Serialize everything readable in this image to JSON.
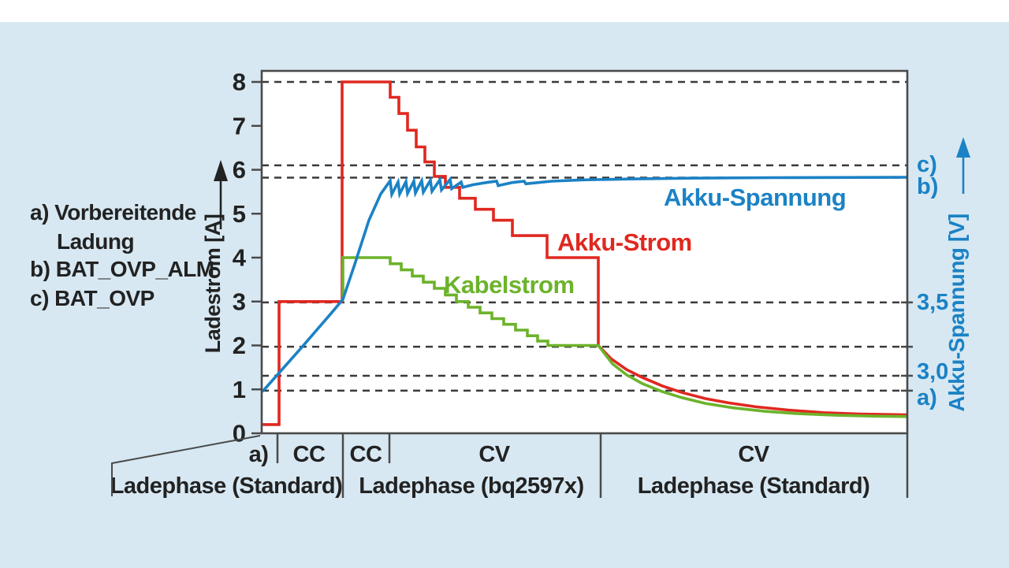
{
  "colors": {
    "panel_bg": "#d7e8f2",
    "top_strip": "#ffffff",
    "plot_bg": "#ffffff",
    "frame": "#4a4a4a",
    "dash": "#3a3a3a",
    "text": "#222222",
    "red": "#e02820",
    "green": "#6cb32b",
    "blue": "#1b82c5"
  },
  "legend": {
    "lines": [
      {
        "text": "a) Vorbereitende"
      },
      {
        "text": "Ladung"
      },
      {
        "text": "b) BAT_OVP_ALM"
      },
      {
        "text": "c) BAT_OVP"
      }
    ]
  },
  "chart_data": {
    "type": "line",
    "title": "",
    "grid": "horizontal-dashed",
    "left_axis": {
      "label": "Ladestrom [A]",
      "unit": "A",
      "range": [
        0,
        8
      ],
      "ticks": [
        0,
        1,
        2,
        3,
        4,
        5,
        6,
        7,
        8
      ]
    },
    "right_axis": {
      "label": "Akku-Spannung [V]",
      "unit": "V",
      "labels": [
        {
          "text": "c)",
          "value": 6.12
        },
        {
          "text": "b)",
          "value": 5.61
        },
        {
          "text": "3,5",
          "value": 2.98
        },
        {
          "text": "3,0",
          "value": 1.4
        },
        {
          "text": "a)",
          "value": 0.81
        }
      ],
      "tick_values": [
        2.98,
        1.97,
        1.31,
        0.97
      ]
    },
    "dashed_levels": [
      8,
      6.1,
      5.82,
      2.98,
      1.97,
      1.31,
      0.97
    ],
    "series": [
      {
        "name": "Akku-Strom",
        "color": "#e02820",
        "points": [
          [
            332,
            0.2
          ],
          [
            354,
            0.2
          ],
          [
            354,
            3
          ],
          [
            434,
            3
          ],
          [
            434,
            8
          ],
          [
            495,
            8
          ],
          [
            495,
            7.65
          ],
          [
            506,
            7.65
          ],
          [
            506,
            7.28
          ],
          [
            517,
            7.28
          ],
          [
            517,
            6.9
          ],
          [
            528,
            6.9
          ],
          [
            528,
            6.52
          ],
          [
            539,
            6.52
          ],
          [
            539,
            6.18
          ],
          [
            551,
            6.18
          ],
          [
            551,
            5.85
          ],
          [
            565,
            5.85
          ],
          [
            565,
            5.6
          ],
          [
            583,
            5.6
          ],
          [
            583,
            5.35
          ],
          [
            603,
            5.35
          ],
          [
            603,
            5.1
          ],
          [
            626,
            5.1
          ],
          [
            626,
            4.85
          ],
          [
            650,
            4.85
          ],
          [
            650,
            4.5
          ],
          [
            694,
            4.5
          ],
          [
            694,
            4
          ],
          [
            759,
            4
          ],
          [
            759,
            2
          ],
          [
            775,
            1.7
          ],
          [
            795,
            1.45
          ],
          [
            815,
            1.27
          ],
          [
            840,
            1.08
          ],
          [
            865,
            0.93
          ],
          [
            895,
            0.79
          ],
          [
            925,
            0.69
          ],
          [
            960,
            0.6
          ],
          [
            1000,
            0.53
          ],
          [
            1045,
            0.47
          ],
          [
            1090,
            0.44
          ],
          [
            1151,
            0.42
          ]
        ]
      },
      {
        "name": "Kabelstrom",
        "color": "#6cb32b",
        "points": [
          [
            435,
            3.02
          ],
          [
            435,
            4
          ],
          [
            495,
            4
          ],
          [
            495,
            3.86
          ],
          [
            509,
            3.86
          ],
          [
            509,
            3.72
          ],
          [
            523,
            3.72
          ],
          [
            523,
            3.58
          ],
          [
            537,
            3.58
          ],
          [
            537,
            3.44
          ],
          [
            551,
            3.44
          ],
          [
            551,
            3.3
          ],
          [
            565,
            3.3
          ],
          [
            565,
            3.15
          ],
          [
            579,
            3.15
          ],
          [
            579,
            3
          ],
          [
            594,
            3
          ],
          [
            594,
            2.87
          ],
          [
            609,
            2.87
          ],
          [
            609,
            2.74
          ],
          [
            624,
            2.74
          ],
          [
            624,
            2.61
          ],
          [
            639,
            2.61
          ],
          [
            639,
            2.48
          ],
          [
            654,
            2.48
          ],
          [
            654,
            2.35
          ],
          [
            669,
            2.35
          ],
          [
            669,
            2.22
          ],
          [
            682,
            2.22
          ],
          [
            682,
            2.1
          ],
          [
            695,
            2.1
          ],
          [
            695,
            2
          ],
          [
            759,
            2
          ],
          [
            777,
            1.58
          ],
          [
            795,
            1.33
          ],
          [
            815,
            1.13
          ],
          [
            840,
            0.95
          ],
          [
            865,
            0.81
          ],
          [
            895,
            0.68
          ],
          [
            930,
            0.58
          ],
          [
            970,
            0.5
          ],
          [
            1010,
            0.45
          ],
          [
            1060,
            0.41
          ],
          [
            1110,
            0.39
          ],
          [
            1151,
            0.38
          ]
        ]
      },
      {
        "name": "Akku-Spannung",
        "color": "#1b82c5",
        "points": [
          [
            333,
            0.95
          ],
          [
            380,
            1.9
          ],
          [
            420,
            2.73
          ],
          [
            435,
            3.05
          ],
          [
            450,
            3.85
          ],
          [
            468,
            4.85
          ],
          [
            483,
            5.45
          ],
          [
            495,
            5.75
          ],
          [
            497,
            5.44
          ],
          [
            505,
            5.72
          ],
          [
            507,
            5.45
          ],
          [
            515,
            5.73
          ],
          [
            517,
            5.46
          ],
          [
            525,
            5.74
          ],
          [
            527,
            5.47
          ],
          [
            535,
            5.75
          ],
          [
            537,
            5.49
          ],
          [
            546,
            5.76
          ],
          [
            548,
            5.51
          ],
          [
            558,
            5.77
          ],
          [
            560,
            5.54
          ],
          [
            571,
            5.78
          ],
          [
            573,
            5.57
          ],
          [
            585,
            5.72
          ],
          [
            587,
            5.6
          ],
          [
            600,
            5.66
          ],
          [
            617,
            5.71
          ],
          [
            630,
            5.74
          ],
          [
            632,
            5.64
          ],
          [
            650,
            5.71
          ],
          [
            665,
            5.74
          ],
          [
            667,
            5.68
          ],
          [
            700,
            5.74
          ],
          [
            740,
            5.77
          ],
          [
            800,
            5.79
          ],
          [
            880,
            5.81
          ],
          [
            980,
            5.82
          ],
          [
            1151,
            5.83
          ]
        ]
      }
    ],
    "curve_labels": [
      {
        "text": "Akku-Strom",
        "x": 707,
        "y": 318,
        "color": "#e02820"
      },
      {
        "text": "Kabelstrom",
        "x": 563,
        "y": 372,
        "color": "#6cb32b"
      },
      {
        "text": "Akku-Spannung",
        "x": 842,
        "y": 261,
        "color": "#1b82c5"
      }
    ],
    "phases": {
      "upper": [
        {
          "label": "a)",
          "x": 328
        },
        {
          "label": "CC",
          "x": 392
        },
        {
          "label": "CC",
          "x": 464
        },
        {
          "label": "CV",
          "x": 627
        },
        {
          "label": "CV",
          "x": 956
        }
      ],
      "lower": [
        {
          "label": "Ladephase (Standard)",
          "x": 287
        },
        {
          "label": "Ladephase (bq2597x)",
          "x": 598
        },
        {
          "label": "Ladephase (Standard)",
          "x": 956
        }
      ],
      "short_ticks": [
        352,
        494
      ],
      "long_ticks": [
        435,
        762,
        1151
      ]
    }
  }
}
